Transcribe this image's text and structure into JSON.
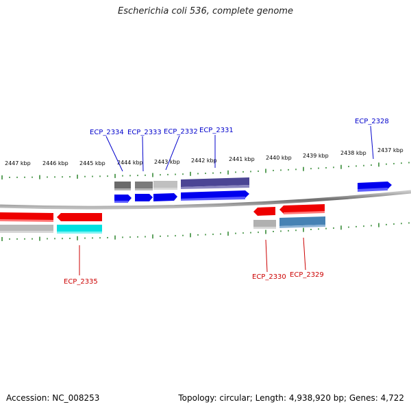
{
  "title": "Escherichia coli 536, complete genome",
  "accession": "Accession: NC_008253",
  "summary": "Topology: circular; Length: 4,938,920 bp; Genes: 4,722",
  "colors": {
    "tick": "#1a7a1a",
    "backbone": "#7a7a7a",
    "forward_label": "#0000cc",
    "reverse_label": "#cc0000"
  },
  "scale_labels": [
    "2447 kbp",
    "2446 kbp",
    "2445 kbp",
    "2444 kbp",
    "2443 kbp",
    "2442 kbp",
    "2441 kbp",
    "2440 kbp",
    "2439 kbp",
    "2438 kbp",
    "2437 kbp"
  ],
  "gene_labels": {
    "top": [
      "ECP_2334",
      "ECP_2333",
      "ECP_2332",
      "ECP_2331",
      "ECP_2328"
    ],
    "bottom": [
      "ECP_2335",
      "ECP_2330",
      "ECP_2329"
    ]
  }
}
